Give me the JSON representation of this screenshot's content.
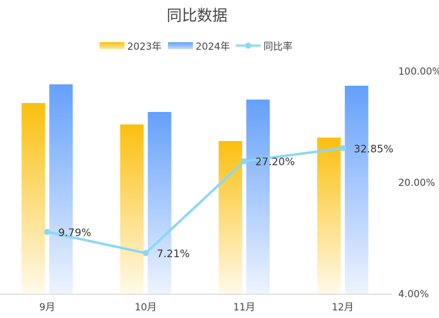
{
  "chart_data": {
    "type": "bar",
    "title": "同比数据",
    "categories": [
      "9月",
      "10月",
      "11月",
      "12月"
    ],
    "series": [
      {
        "name": "2023年",
        "type": "bar",
        "values": [
          276,
          245,
          221,
          226
        ],
        "color": "#fbbf0f"
      },
      {
        "name": "2024年",
        "type": "bar",
        "values": [
          303,
          263,
          281,
          301
        ],
        "color": "#64a0fc"
      },
      {
        "name": "同比率",
        "type": "line",
        "axis": "right",
        "values": [
          9.79,
          7.21,
          27.2,
          32.85
        ],
        "labels": [
          "9.79%",
          "7.21%",
          "27.20%",
          "32.85%"
        ],
        "color": "#8ad8f5"
      }
    ],
    "left_axis": {
      "visible": false,
      "ylim": [
        0,
        325
      ]
    },
    "right_axis": {
      "scale": "log",
      "ylim": [
        4,
        100
      ],
      "ticks": [
        4,
        20,
        100
      ],
      "tick_labels": [
        "4.00%",
        "20.00%",
        "100.00%"
      ]
    },
    "grid": false,
    "legend": "top-center"
  }
}
